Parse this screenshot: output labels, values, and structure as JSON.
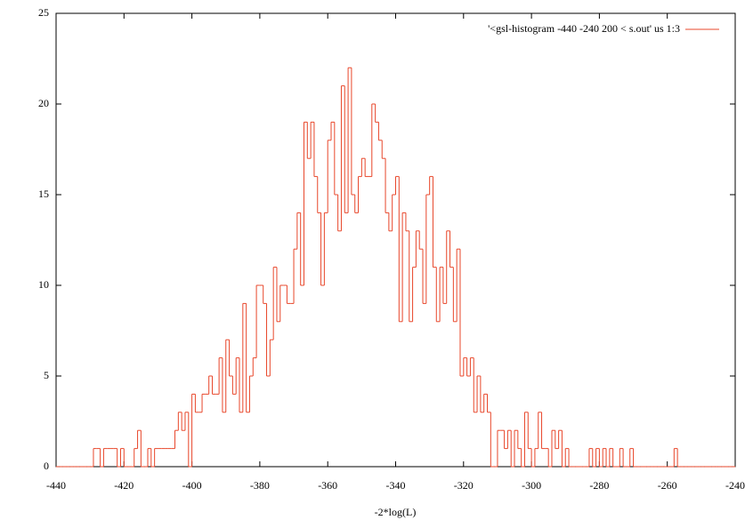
{
  "chart_data": {
    "type": "histogram",
    "legend": "'<gsl-histogram -440 -240 200 < s.out' us 1:3",
    "xlabel": "-2*log(L)",
    "color": "#e8472b",
    "legend_position": "top-right",
    "bins": [
      -440,
      -439,
      -438,
      -437,
      -436,
      -435,
      -434,
      -433,
      -432,
      -431,
      -430,
      -429,
      -428,
      -427,
      -426,
      -425,
      -424,
      -423,
      -422,
      -421,
      -420,
      -419,
      -418,
      -417,
      -416,
      -415,
      -414,
      -413,
      -412,
      -411,
      -410,
      -409,
      -408,
      -407,
      -406,
      -405,
      -404,
      -403,
      -402,
      -401,
      -400,
      -399,
      -398,
      -397,
      -396,
      -395,
      -394,
      -393,
      -392,
      -391,
      -390,
      -389,
      -388,
      -387,
      -386,
      -385,
      -384,
      -383,
      -382,
      -381,
      -380,
      -379,
      -378,
      -377,
      -376,
      -375,
      -374,
      -373,
      -372,
      -371,
      -370,
      -369,
      -368,
      -367,
      -366,
      -365,
      -364,
      -363,
      -362,
      -361,
      -360,
      -359,
      -358,
      -357,
      -356,
      -355,
      -354,
      -353,
      -352,
      -351,
      -350,
      -349,
      -348,
      -347,
      -346,
      -345,
      -344,
      -343,
      -342,
      -341,
      -340,
      -339,
      -338,
      -337,
      -336,
      -335,
      -334,
      -333,
      -332,
      -331,
      -330,
      -329,
      -328,
      -327,
      -326,
      -325,
      -324,
      -323,
      -322,
      -321,
      -320,
      -319,
      -318,
      -317,
      -316,
      -315,
      -314,
      -313,
      -312,
      -311,
      -310,
      -309,
      -308,
      -307,
      -306,
      -305,
      -304,
      -303,
      -302,
      -301,
      -300,
      -299,
      -298,
      -297,
      -296,
      -295,
      -294,
      -293,
      -292,
      -291,
      -290,
      -289,
      -288,
      -287,
      -286,
      -285,
      -284,
      -283,
      -282,
      -281,
      -280,
      -279,
      -278,
      -277,
      -276,
      -275,
      -274,
      -273,
      -272,
      -271,
      -270,
      -269,
      -268,
      -267,
      -266,
      -265,
      -264,
      -263,
      -262,
      -261,
      -260,
      -259,
      -258,
      -257,
      -256,
      -255,
      -254,
      -253,
      -252,
      -251,
      -250,
      -249,
      -248,
      -247,
      -246,
      -245,
      -244,
      -243,
      -242,
      -241,
      -240
    ],
    "values": [
      0,
      0,
      0,
      0,
      0,
      0,
      0,
      0,
      0,
      0,
      0,
      1,
      1,
      0,
      1,
      1,
      1,
      1,
      0,
      1,
      0,
      0,
      0,
      1,
      2,
      0,
      0,
      1,
      0,
      1,
      1,
      1,
      1,
      1,
      1,
      2,
      3,
      2,
      3,
      0,
      4,
      3,
      3,
      4,
      4,
      5,
      4,
      4,
      6,
      3,
      7,
      5,
      4,
      6,
      3,
      9,
      3,
      5,
      6,
      10,
      10,
      9,
      5,
      7,
      11,
      8,
      10,
      10,
      9,
      9,
      12,
      14,
      10,
      19,
      17,
      19,
      16,
      14,
      10,
      14,
      18,
      19,
      15,
      13,
      21,
      14,
      22,
      15,
      14,
      16,
      17,
      16,
      16,
      20,
      19,
      18,
      17,
      14,
      13,
      15,
      16,
      8,
      14,
      13,
      8,
      11,
      13,
      12,
      9,
      15,
      16,
      11,
      8,
      11,
      9,
      13,
      11,
      8,
      12,
      5,
      6,
      5,
      6,
      3,
      5,
      3,
      4,
      3,
      0,
      0,
      2,
      2,
      1,
      2,
      0,
      2,
      1,
      0,
      3,
      1,
      0,
      1,
      3,
      1,
      1,
      0,
      2,
      1,
      2,
      0,
      1,
      0,
      0,
      0,
      0,
      0,
      0,
      1,
      0,
      1,
      0,
      1,
      0,
      1,
      0,
      0,
      1,
      0,
      0,
      1,
      0,
      0,
      0,
      0,
      0,
      0,
      0,
      0,
      0,
      0,
      0,
      0,
      1,
      0,
      0,
      0,
      0,
      0,
      0,
      0,
      0,
      0,
      0,
      0,
      0,
      0,
      0,
      0,
      0,
      0
    ],
    "xlim": [
      -440,
      -240
    ],
    "ylim": [
      0,
      25
    ],
    "xticks": [
      -440,
      -420,
      -400,
      -380,
      -360,
      -340,
      -320,
      -300,
      -280,
      -260,
      -240
    ],
    "yticks": [
      0,
      5,
      10,
      15,
      20,
      25
    ]
  }
}
